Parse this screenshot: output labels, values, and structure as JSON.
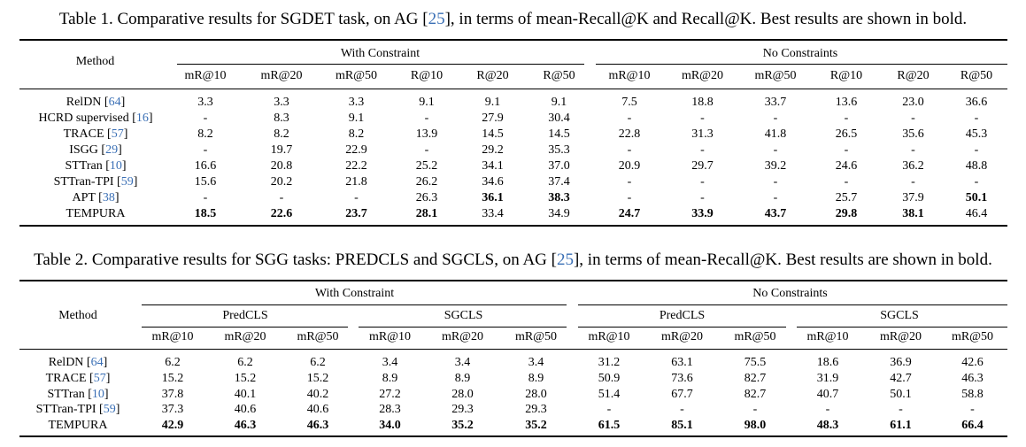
{
  "colors": {
    "text": "#000000",
    "citation": "#3a6fb5",
    "background": "#ffffff"
  },
  "table1": {
    "caption": "Table 1. Comparative results for SGDET task, on AG [25], in terms of mean-Recall@K and Recall@K. Best results are shown in bold.",
    "method_header": "Method",
    "groups": [
      "With Constraint",
      "No Constraints"
    ],
    "metrics": [
      "mR@10",
      "mR@20",
      "mR@50",
      "R@10",
      "R@20",
      "R@50",
      "mR@10",
      "mR@20",
      "mR@50",
      "R@10",
      "R@20",
      "R@50"
    ],
    "rows": [
      {
        "method": "RelDN [64]",
        "values": [
          "3.3",
          "3.3",
          "3.3",
          "9.1",
          "9.1",
          "9.1",
          "7.5",
          "18.8",
          "33.7",
          "13.6",
          "23.0",
          "36.6"
        ],
        "bold": []
      },
      {
        "method": "HCRD supervised [16]",
        "values": [
          "-",
          "8.3",
          "9.1",
          "-",
          "27.9",
          "30.4",
          "-",
          "-",
          "-",
          "-",
          "-",
          "-"
        ],
        "bold": []
      },
      {
        "method": "TRACE [57]",
        "values": [
          "8.2",
          "8.2",
          "8.2",
          "13.9",
          "14.5",
          "14.5",
          "22.8",
          "31.3",
          "41.8",
          "26.5",
          "35.6",
          "45.3"
        ],
        "bold": []
      },
      {
        "method": "ISGG [29]",
        "values": [
          "-",
          "19.7",
          "22.9",
          "-",
          "29.2",
          "35.3",
          "-",
          "-",
          "-",
          "-",
          "-",
          "-"
        ],
        "bold": []
      },
      {
        "method": "STTran [10]",
        "values": [
          "16.6",
          "20.8",
          "22.2",
          "25.2",
          "34.1",
          "37.0",
          "20.9",
          "29.7",
          "39.2",
          "24.6",
          "36.2",
          "48.8"
        ],
        "bold": []
      },
      {
        "method": "STTran-TPI [59]",
        "values": [
          "15.6",
          "20.2",
          "21.8",
          "26.2",
          "34.6",
          "37.4",
          "-",
          "-",
          "-",
          "-",
          "-",
          "-"
        ],
        "bold": []
      },
      {
        "method": "APT [38]",
        "values": [
          "-",
          "-",
          "-",
          "26.3",
          "36.1",
          "38.3",
          "-",
          "-",
          "-",
          "25.7",
          "37.9",
          "50.1"
        ],
        "bold": [
          4,
          5,
          11
        ]
      },
      {
        "method": "TEMPURA",
        "values": [
          "18.5",
          "22.6",
          "23.7",
          "28.1",
          "33.4",
          "34.9",
          "24.7",
          "33.9",
          "43.7",
          "29.8",
          "38.1",
          "46.4"
        ],
        "bold": [
          0,
          1,
          2,
          3,
          6,
          7,
          8,
          9,
          10
        ]
      }
    ]
  },
  "table2": {
    "caption": "Table 2. Comparative results for SGG tasks: PREDCLS and SGCLS, on AG [25], in terms of mean-Recall@K. Best results are shown in bold.",
    "method_header": "Method",
    "groups": [
      "With Constraint",
      "No Constraints"
    ],
    "subgroups": [
      "PredCLS",
      "SGCLS",
      "PredCLS",
      "SGCLS"
    ],
    "metrics": [
      "mR@10",
      "mR@20",
      "mR@50",
      "mR@10",
      "mR@20",
      "mR@50",
      "mR@10",
      "mR@20",
      "mR@50",
      "mR@10",
      "mR@20",
      "mR@50"
    ],
    "rows": [
      {
        "method": "RelDN [64]",
        "values": [
          "6.2",
          "6.2",
          "6.2",
          "3.4",
          "3.4",
          "3.4",
          "31.2",
          "63.1",
          "75.5",
          "18.6",
          "36.9",
          "42.6"
        ],
        "bold": []
      },
      {
        "method": "TRACE [57]",
        "values": [
          "15.2",
          "15.2",
          "15.2",
          "8.9",
          "8.9",
          "8.9",
          "50.9",
          "73.6",
          "82.7",
          "31.9",
          "42.7",
          "46.3"
        ],
        "bold": []
      },
      {
        "method": "STTran [10]",
        "values": [
          "37.8",
          "40.1",
          "40.2",
          "27.2",
          "28.0",
          "28.0",
          "51.4",
          "67.7",
          "82.7",
          "40.7",
          "50.1",
          "58.8"
        ],
        "bold": []
      },
      {
        "method": "STTran-TPI [59]",
        "values": [
          "37.3",
          "40.6",
          "40.6",
          "28.3",
          "29.3",
          "29.3",
          "-",
          "-",
          "-",
          "-",
          "-",
          "-"
        ],
        "bold": []
      },
      {
        "method": "TEMPURA",
        "values": [
          "42.9",
          "46.3",
          "46.3",
          "34.0",
          "35.2",
          "35.2",
          "61.5",
          "85.1",
          "98.0",
          "48.3",
          "61.1",
          "66.4"
        ],
        "bold": [
          0,
          1,
          2,
          3,
          4,
          5,
          6,
          7,
          8,
          9,
          10,
          11
        ]
      }
    ]
  }
}
